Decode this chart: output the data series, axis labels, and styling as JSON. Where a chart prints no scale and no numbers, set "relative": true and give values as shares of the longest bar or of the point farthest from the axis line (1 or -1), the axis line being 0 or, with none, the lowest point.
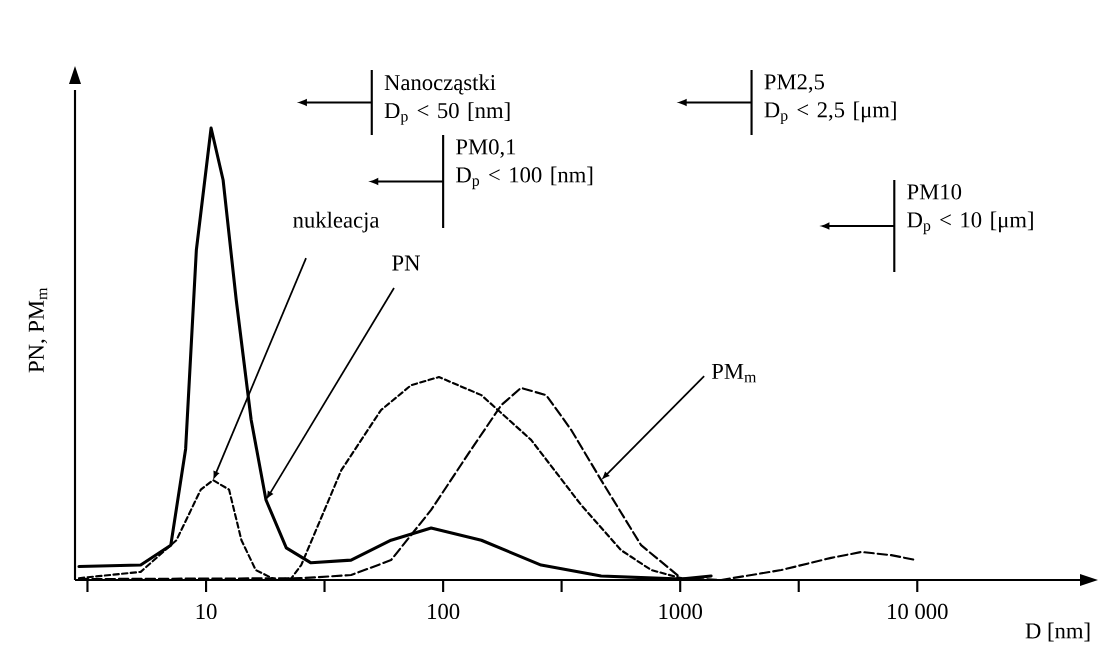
{
  "chart_data": {
    "type": "line",
    "relative": true,
    "xlabel": "D [nm]",
    "ylabel": "PN, PM$_{m}$",
    "log": "x",
    "marker": "none",
    "xlim": [
      2.8,
      51000
    ],
    "xticks": [
      {
        "value": 3.16,
        "label": null
      },
      10,
      {
        "value": 31.6,
        "label": null
      },
      100,
      {
        "value": 316,
        "label": null
      },
      1000,
      {
        "value": 3162,
        "label": null
      },
      {
        "value": 10000,
        "label": "10 000"
      }
    ],
    "series": [
      {
        "color": "#000000",
        "line_style": "solid",
        "x": [
          2.91,
          5.3,
          7.1,
          8.2,
          9.1,
          10.5,
          11.8,
          13.4,
          15.5,
          17.9,
          21.8,
          27.7,
          40.9,
          60.3,
          89,
          145,
          259,
          464,
          1009,
          1350
        ],
        "values": [
          0.03,
          0.033,
          0.077,
          0.29,
          0.73,
          1,
          0.885,
          0.62,
          0.354,
          0.177,
          0.071,
          0.038,
          0.044,
          0.088,
          0.115,
          0.088,
          0.033,
          0.009,
          0.002,
          0.009
        ]
      },
      {
        "color": "#000000",
        "line_style": "dotted",
        "x": [
          2.91,
          5.3,
          7.5,
          9.5,
          10.7,
          12.5,
          14.1,
          16.2,
          19.7,
          22.9,
          25.2,
          37.2,
          54.7,
          73.3,
          96,
          145,
          235,
          382,
          563,
          755,
          1009
        ],
        "values": [
          0.004,
          0.018,
          0.088,
          0.2,
          0.221,
          0.2,
          0.088,
          0.022,
          0,
          0.004,
          0.033,
          0.243,
          0.376,
          0.431,
          0.449,
          0.409,
          0.31,
          0.166,
          0.066,
          0.022,
          0.004
        ]
      },
      {
        "color": "#000000",
        "line_style": "dashed",
        "x": [
          2.91,
          25.2,
          40.9,
          60.3,
          89,
          131,
          176,
          213,
          272,
          347,
          464,
          684,
          1009,
          1489,
          2667,
          4335,
          5807,
          7762,
          9908
        ],
        "values": [
          0.002,
          0.004,
          0.011,
          0.044,
          0.155,
          0.288,
          0.387,
          0.425,
          0.409,
          0.332,
          0.221,
          0.077,
          0.004,
          0,
          0.022,
          0.049,
          0.062,
          0.055,
          0.044
        ]
      }
    ],
    "ref_lines": [
      {
        "axis": "x",
        "value": 50,
        "label": "Nanocząstki D$_{p}$ < 50 [nm]"
      },
      {
        "axis": "x",
        "value": 100,
        "label": "PM0,1 D$_{p}$ < 100 [nm]"
      },
      {
        "axis": "x",
        "value": 2000,
        "label": "PM2,5 D$_{p}$ < 2,5 [μm]"
      },
      {
        "axis": "x",
        "value": 8000,
        "label": "PM10 D$_{p}$ < 10 [μm]"
      }
    ],
    "annotations": [
      {
        "text": "nukleacja",
        "x": 10.7,
        "y": 0.221
      },
      {
        "text": "PN",
        "x": 17.9,
        "y": 0.177
      },
      {
        "text": "PM$_{m}$",
        "x": 464,
        "y": 0.221
      }
    ]
  }
}
